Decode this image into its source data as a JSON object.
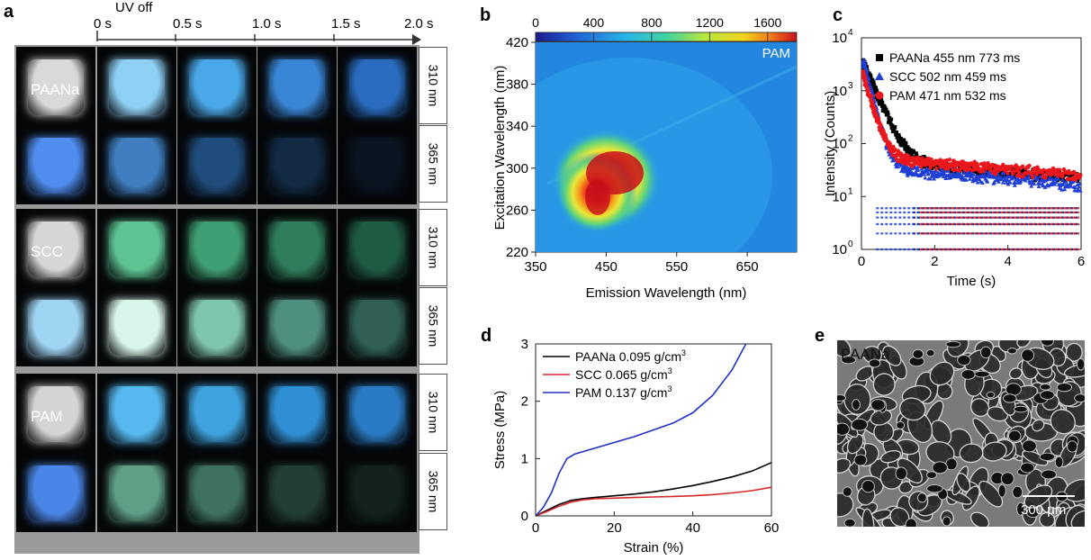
{
  "panel_letters": {
    "a": "a",
    "b": "b",
    "c": "c",
    "d": "d",
    "e": "e"
  },
  "panel_a": {
    "uv_off_label": "UV off",
    "time_labels": [
      "0 s",
      "0.5 s",
      "1.0 s",
      "1.5 s",
      "2.0 s"
    ],
    "rows": [
      {
        "sample": "PAANa",
        "wavelength": "310 nm",
        "colors": [
          "#d9d9d9",
          "#8fd0f5",
          "#4aa8e8",
          "#3a86d6",
          "#2a6cbf"
        ]
      },
      {
        "sample": "",
        "wavelength": "365 nm",
        "colors": [
          "#4f8df0",
          "#3f7fc0",
          "#1f4c7a",
          "#122a44",
          "#0a1420"
        ]
      },
      {
        "sample": "SCC",
        "wavelength": "310 nm",
        "colors": [
          "#d6d6d6",
          "#5fc394",
          "#3f9e73",
          "#2f7d5a",
          "#1f5a42"
        ]
      },
      {
        "sample": "",
        "wavelength": "365 nm",
        "colors": [
          "#9fd4f2",
          "#d8f5e9",
          "#7fc4ad",
          "#4f8f7f",
          "#2f5f55"
        ]
      },
      {
        "sample": "PAM",
        "wavelength": "310 nm",
        "colors": [
          "#d4d4d4",
          "#55b8ef",
          "#3fa3df",
          "#2f8fd4",
          "#2a7bc3"
        ]
      },
      {
        "sample": "",
        "wavelength": "365 nm",
        "colors": [
          "#4a86e8",
          "#5f9f86",
          "#3f7160",
          "#233f35",
          "#13221c"
        ]
      }
    ]
  },
  "panel_b": {
    "label": "PAM",
    "colorbar_ticks": [
      "0",
      "400",
      "800",
      "1200",
      "1600"
    ],
    "xlabel": "Emission Wavelength (nm)",
    "ylabel": "Excitation Wavelength (nm)",
    "x_ticks": [
      "350",
      "450",
      "550",
      "650"
    ],
    "y_ticks": [
      "420",
      "380",
      "340",
      "300",
      "260",
      "220"
    ]
  },
  "panel_e": {
    "label": "PAANa",
    "scalebar": "300 μm"
  },
  "chart_data": [
    {
      "type": "heatmap",
      "title": "PAM",
      "xlabel": "Emission Wavelength (nm)",
      "ylabel": "Excitation Wavelength (nm)",
      "xlim": [
        350,
        720
      ],
      "ylim": [
        220,
        420
      ],
      "colorbar_range": [
        0,
        1800
      ],
      "peak": {
        "x": 455,
        "y": 290,
        "value": 1800
      }
    },
    {
      "type": "scatter",
      "xlabel": "Time (s)",
      "ylabel": "Intensity (Counts)",
      "xlim": [
        0,
        6
      ],
      "ylim": [
        1,
        10000
      ],
      "y_scale": "log",
      "x_ticks": [
        "0",
        "2",
        "4",
        "6"
      ],
      "y_ticks": [
        "10",
        "10",
        "10",
        "10",
        "10"
      ],
      "y_tick_exp": [
        "0",
        "1",
        "2",
        "3",
        "4"
      ],
      "legend_position": "top-right",
      "series": [
        {
          "name": "PAANa 455 nm 773 ms",
          "color": "#000000",
          "marker": "square",
          "lifetime_s": 0.773,
          "peak": 4000,
          "floor": 8
        },
        {
          "name": "SCC 502 nm 459 ms",
          "color": "#1f3fd6",
          "marker": "triangle",
          "lifetime_s": 0.459,
          "peak": 5000,
          "floor": 6
        },
        {
          "name": "PAM 471 nm 532 ms",
          "color": "#e8181c",
          "marker": "circle",
          "lifetime_s": 0.532,
          "peak": 2500,
          "floor": 9
        }
      ]
    },
    {
      "type": "line",
      "xlabel": "Strain (%)",
      "ylabel": "Stress (MPa)",
      "xlim": [
        0,
        60
      ],
      "ylim": [
        0,
        3
      ],
      "x_ticks": [
        "0",
        "20",
        "40",
        "60"
      ],
      "y_ticks": [
        "0",
        "1",
        "2",
        "3"
      ],
      "legend_position": "top-left",
      "series": [
        {
          "name": "PAANa  0.095 g/cm",
          "sup": "3",
          "color": "#000000",
          "x": [
            0,
            3,
            6,
            9,
            12,
            15,
            20,
            25,
            30,
            35,
            40,
            45,
            50,
            55,
            60
          ],
          "y": [
            0,
            0.1,
            0.2,
            0.27,
            0.3,
            0.32,
            0.35,
            0.38,
            0.42,
            0.47,
            0.53,
            0.6,
            0.68,
            0.78,
            0.93
          ]
        },
        {
          "name": "SCC  0.065 g/cm",
          "sup": "3",
          "color": "#d62728",
          "x": [
            0,
            3,
            6,
            9,
            12,
            15,
            20,
            25,
            30,
            35,
            40,
            45,
            50,
            55,
            60
          ],
          "y": [
            0,
            0.08,
            0.17,
            0.24,
            0.28,
            0.3,
            0.31,
            0.32,
            0.33,
            0.34,
            0.35,
            0.37,
            0.4,
            0.44,
            0.5
          ]
        },
        {
          "name": "PAM  0.137 g/cm",
          "sup": "3",
          "color": "#1f2fc8",
          "x": [
            0,
            2,
            4,
            6,
            8,
            10,
            15,
            20,
            25,
            30,
            35,
            40,
            45,
            50,
            53.5
          ],
          "y": [
            0,
            0.15,
            0.4,
            0.75,
            1.0,
            1.08,
            1.18,
            1.28,
            1.38,
            1.5,
            1.62,
            1.8,
            2.1,
            2.55,
            3.0
          ]
        }
      ]
    }
  ]
}
